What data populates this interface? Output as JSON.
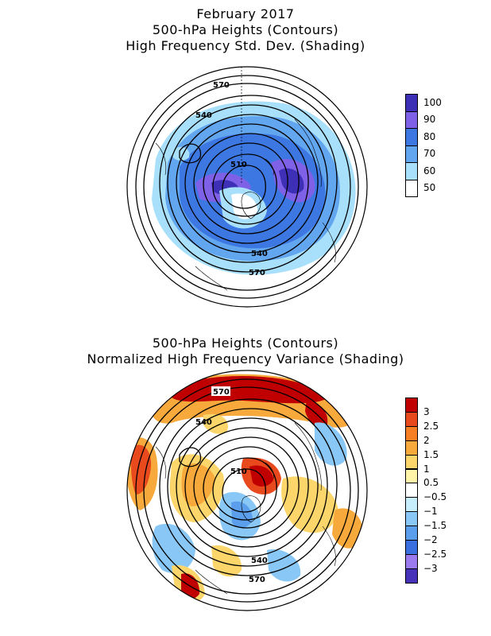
{
  "top_panel": {
    "title_lines": [
      "February 2017",
      "500-hPa Heights (Contours)",
      "High Frequency Std. Dev. (Shading)"
    ],
    "contour_labels": [
      "570",
      "540",
      "510",
      "540",
      "570"
    ],
    "colorbar": {
      "labels": [
        "100",
        "90",
        "80",
        "70",
        "60",
        "50"
      ],
      "colors": [
        "#3d2fb6",
        "#7e61e6",
        "#3d78e2",
        "#63a6f0",
        "#a8e0fb",
        "#ffffff"
      ]
    }
  },
  "bottom_panel": {
    "title_lines": [
      "500-hPa Heights (Contours)",
      "Normalized High Frequency Variance (Shading)"
    ],
    "contour_labels": [
      "570",
      "540",
      "510",
      "540",
      "570"
    ],
    "colorbar": {
      "labels": [
        "3",
        "2.5",
        "2",
        "1.5",
        "1",
        "0.5",
        "−0.5",
        "−1",
        "−1.5",
        "−2",
        "−2.5",
        "−3"
      ],
      "colors": [
        "#c00000",
        "#e8491d",
        "#f57f22",
        "#f7a93b",
        "#fcd66a",
        "#fff4a8",
        "#ffffff",
        "#c7eefd",
        "#89c8f6",
        "#5a9eec",
        "#3a6fe0",
        "#9b7bee",
        "#4532b8"
      ]
    }
  }
}
